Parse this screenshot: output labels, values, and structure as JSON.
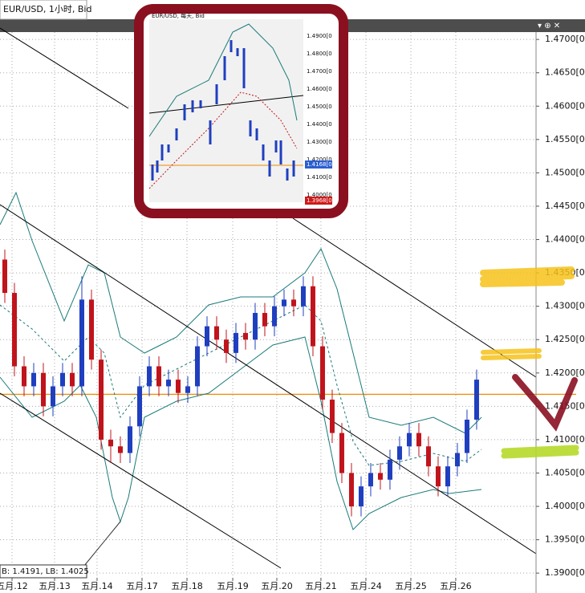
{
  "chart_data": {
    "type": "candlestick",
    "title": "EUR/USD, 1小时, Bid",
    "x": [
      0,
      1,
      2,
      3,
      4,
      5,
      6,
      7,
      8,
      9,
      10,
      11,
      12,
      13,
      14,
      15,
      16,
      17,
      18,
      19,
      20,
      21,
      22,
      23,
      24,
      25,
      26,
      27,
      28,
      29,
      30,
      31,
      32,
      33,
      34,
      35,
      36,
      37,
      38,
      39,
      40,
      41,
      42,
      43,
      44,
      45,
      46,
      47,
      48,
      49
    ],
    "open": [
      1.437,
      1.432,
      1.421,
      1.418,
      1.42,
      1.415,
      1.418,
      1.42,
      1.418,
      1.431,
      1.422,
      1.41,
      1.409,
      1.408,
      1.412,
      1.418,
      1.421,
      1.418,
      1.419,
      1.417,
      1.418,
      1.424,
      1.427,
      1.425,
      1.423,
      1.426,
      1.425,
      1.429,
      1.427,
      1.43,
      1.431,
      1.43,
      1.433,
      1.424,
      1.416,
      1.411,
      1.405,
      1.4,
      1.403,
      1.405,
      1.404,
      1.407,
      1.409,
      1.411,
      1.409,
      1.406,
      1.403,
      1.406,
      1.408,
      1.413
    ],
    "high": [
      1.4385,
      1.4335,
      1.4225,
      1.4215,
      1.4215,
      1.4195,
      1.4215,
      1.4215,
      1.4345,
      1.4325,
      1.4235,
      1.4115,
      1.4105,
      1.4135,
      1.4195,
      1.4225,
      1.4225,
      1.4205,
      1.4205,
      1.4195,
      1.4255,
      1.4285,
      1.4285,
      1.4265,
      1.4275,
      1.4275,
      1.4305,
      1.4305,
      1.4315,
      1.4325,
      1.4325,
      1.4345,
      1.4345,
      1.4255,
      1.4175,
      1.4125,
      1.4065,
      1.4045,
      1.4065,
      1.4065,
      1.4085,
      1.4105,
      1.4125,
      1.4125,
      1.4105,
      1.4075,
      1.4075,
      1.4095,
      1.4145,
      1.4205
    ],
    "low": [
      1.4305,
      1.4195,
      1.4165,
      1.4165,
      1.4135,
      1.4135,
      1.4165,
      1.4165,
      1.4165,
      1.4205,
      1.4085,
      1.4065,
      1.4065,
      1.4065,
      1.4105,
      1.4165,
      1.4165,
      1.4165,
      1.4155,
      1.4155,
      1.4165,
      1.4225,
      1.4235,
      1.4215,
      1.4215,
      1.4235,
      1.4235,
      1.4255,
      1.4255,
      1.4285,
      1.4285,
      1.4285,
      1.4225,
      1.4145,
      1.4095,
      1.4035,
      1.3985,
      1.3985,
      1.4015,
      1.4025,
      1.4025,
      1.4055,
      1.4075,
      1.4075,
      1.4045,
      1.4015,
      1.4015,
      1.4045,
      1.4065,
      1.4115
    ],
    "close": [
      1.432,
      1.421,
      1.418,
      1.42,
      1.415,
      1.418,
      1.42,
      1.418,
      1.431,
      1.422,
      1.41,
      1.409,
      1.408,
      1.412,
      1.418,
      1.421,
      1.418,
      1.419,
      1.417,
      1.418,
      1.424,
      1.427,
      1.425,
      1.423,
      1.426,
      1.425,
      1.429,
      1.427,
      1.43,
      1.431,
      1.43,
      1.433,
      1.424,
      1.416,
      1.411,
      1.405,
      1.4,
      1.403,
      1.405,
      1.404,
      1.407,
      1.409,
      1.411,
      1.409,
      1.406,
      1.403,
      1.406,
      1.408,
      1.413,
      1.419
    ],
    "up_color": "#1f3fbf",
    "down_color": "#c0141c",
    "reference_line": {
      "value": 1.4168,
      "color": "#f08a00"
    },
    "xlim": [
      -0.5,
      55.17
    ],
    "xticks": [
      {
        "value": 0.75,
        "label": "五月.12"
      },
      {
        "value": 5.17,
        "label": "五月.13"
      },
      {
        "value": 9.58,
        "label": "五月.14"
      },
      {
        "value": 14.25,
        "label": "五月.17"
      },
      {
        "value": 18.92,
        "label": "五月.18"
      },
      {
        "value": 23.67,
        "label": "五月.19"
      },
      {
        "value": 28.25,
        "label": "五月.20"
      },
      {
        "value": 32.83,
        "label": "五月.21"
      },
      {
        "value": 37.5,
        "label": "五月.24"
      },
      {
        "value": 42.17,
        "label": "五月.25"
      },
      {
        "value": 46.83,
        "label": "五月.26"
      }
    ],
    "ylim": [
      1.3893,
      1.4711
    ],
    "yticks": [
      {
        "value": 1.47,
        "label": "1.4700[0"
      },
      {
        "value": 1.465,
        "label": "1.4650[0"
      },
      {
        "value": 1.46,
        "label": "1.4600[0"
      },
      {
        "value": 1.455,
        "label": "1.4550[0"
      },
      {
        "value": 1.45,
        "label": "1.4500[0"
      },
      {
        "value": 1.445,
        "label": "1.4450[0"
      },
      {
        "value": 1.44,
        "label": "1.4400[0"
      },
      {
        "value": 1.435,
        "label": "1.4350[0"
      },
      {
        "value": 1.43,
        "label": "1.4300[0"
      },
      {
        "value": 1.425,
        "label": "1.4250[0"
      },
      {
        "value": 1.42,
        "label": "1.4200[0"
      },
      {
        "value": 1.415,
        "label": "1.4150[0"
      },
      {
        "value": 1.41,
        "label": "1.4100[0"
      },
      {
        "value": 1.405,
        "label": "1.4050[0"
      },
      {
        "value": 1.4,
        "label": "1.4000[0"
      },
      {
        "value": 1.395,
        "label": "1.3950[0"
      },
      {
        "value": 1.39,
        "label": "1.3900[0"
      }
    ],
    "grid": true,
    "annotation": "B: 1.4191, LB: 1.4025"
  },
  "inset": {
    "title": "EUR/USD, 每天, Bid",
    "ticks": [
      "1.4900[0",
      "1.4800[0",
      "1.4700[0",
      "1.4600[0",
      "1.4500[0",
      "1.4400[0",
      "1.4300[0",
      "1.4200[0",
      "1.4100[0",
      "1.4000[0"
    ],
    "price_tag": "1.4168[0",
    "low_tag": "1.3968[0"
  }
}
